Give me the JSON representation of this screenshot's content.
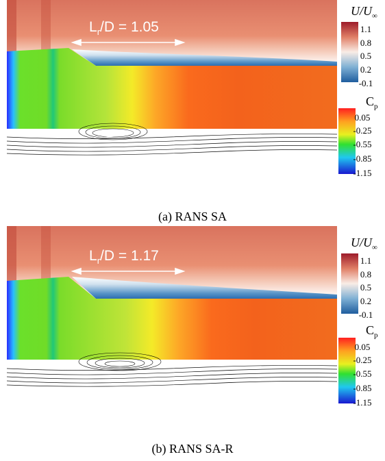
{
  "panels": [
    {
      "id": "a",
      "caption": "(a) RANS SA",
      "annotation": {
        "prefix": "L",
        "sub": "r",
        "suffix": "/D = 1.05"
      },
      "velocity_colorbar": {
        "title_var": "U/U",
        "title_sub": "∞",
        "ticks": [
          "1.1",
          "0.8",
          "0.5",
          "0.2",
          "-0.1"
        ]
      },
      "pressure_colorbar": {
        "title_var": "C",
        "title_sub": "p",
        "ticks": [
          "0.05",
          "-0.25",
          "-0.55",
          "-0.85",
          "-1.15"
        ]
      }
    },
    {
      "id": "b",
      "caption": "(b) RANS SA-R",
      "annotation": {
        "prefix": "L",
        "sub": "r",
        "suffix": "/D = 1.17"
      },
      "velocity_colorbar": {
        "title_var": "U/U",
        "title_sub": "∞",
        "ticks": [
          "1.1",
          "0.8",
          "0.5",
          "0.2",
          "-0.1"
        ]
      },
      "pressure_colorbar": {
        "title_var": "C",
        "title_sub": "p",
        "ticks": [
          "0.05",
          "-0.25",
          "-0.55",
          "-0.85",
          "-1.15"
        ]
      }
    }
  ],
  "colors": {
    "velocity_high": "#b2182b",
    "velocity_mid": "#f7f7f7",
    "velocity_low": "#2166ac",
    "pressure_high": "#e31a1c",
    "pressure_mid": "#66dd22",
    "pressure_low": "#1a2bd8"
  }
}
